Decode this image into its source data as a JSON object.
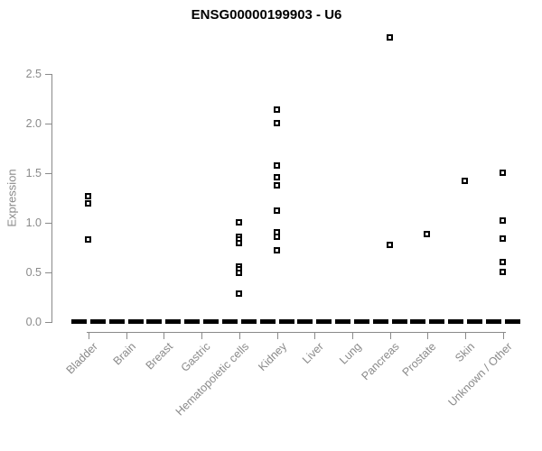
{
  "title": "ENSG00000199903 - U6",
  "chart_data": {
    "type": "scatter",
    "subtype": "strip-plot-by-category",
    "title": "ENSG00000199903 - U6",
    "xlabel": "",
    "ylabel": "Expression",
    "ylim": [
      0,
      2.9
    ],
    "y_ticks": [
      "0.0",
      "0.5",
      "1.0",
      "1.5",
      "2.0",
      "2.5"
    ],
    "grid": false,
    "legend": "none",
    "marker": "open-square",
    "point_color": "#000000",
    "axis_color": "#8a8a8a",
    "title_color": "#000000",
    "zero_line_note": "each category shows a thick dashed black bar of many overlapping points at expression 0",
    "categories": [
      "Bladder",
      "Brain",
      "Breast",
      "Gastric",
      "Hematopoietic cells",
      "Kidney",
      "Liver",
      "Lung",
      "Pancreas",
      "Prostate",
      "Skin",
      "Unknown / Other"
    ],
    "series": [
      {
        "category": "Bladder",
        "nonzero_values": [
          1.26,
          1.19,
          0.82
        ],
        "zero_cluster": true
      },
      {
        "category": "Brain",
        "nonzero_values": [],
        "zero_cluster": true
      },
      {
        "category": "Breast",
        "nonzero_values": [],
        "zero_cluster": true
      },
      {
        "category": "Gastric",
        "nonzero_values": [],
        "zero_cluster": true
      },
      {
        "category": "Hematopoietic cells",
        "nonzero_values": [
          1.0,
          0.85,
          0.82,
          0.79,
          0.55,
          0.52,
          0.49,
          0.28
        ],
        "zero_cluster": true
      },
      {
        "category": "Kidney",
        "nonzero_values": [
          2.13,
          2.0,
          1.57,
          1.45,
          1.37,
          1.11,
          0.9,
          0.85,
          0.71
        ],
        "zero_cluster": true
      },
      {
        "category": "Liver",
        "nonzero_values": [],
        "zero_cluster": true
      },
      {
        "category": "Lung",
        "nonzero_values": [],
        "zero_cluster": true
      },
      {
        "category": "Pancreas",
        "nonzero_values": [
          2.86,
          0.77
        ],
        "zero_cluster": true
      },
      {
        "category": "Prostate",
        "nonzero_values": [
          0.88
        ],
        "zero_cluster": true
      },
      {
        "category": "Skin",
        "nonzero_values": [
          1.41
        ],
        "zero_cluster": true
      },
      {
        "category": "Unknown / Other",
        "nonzero_values": [
          1.5,
          1.01,
          0.83,
          0.6,
          0.5
        ],
        "zero_cluster": true
      }
    ]
  }
}
